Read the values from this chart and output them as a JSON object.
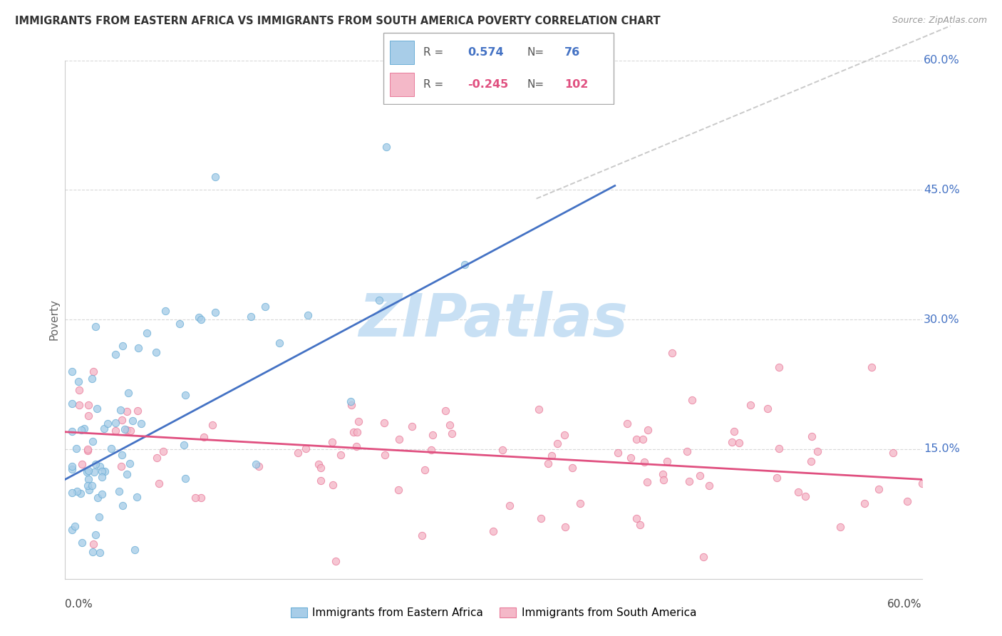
{
  "title": "IMMIGRANTS FROM EASTERN AFRICA VS IMMIGRANTS FROM SOUTH AMERICA POVERTY CORRELATION CHART",
  "source": "Source: ZipAtlas.com",
  "ylabel": "Poverty",
  "label1": "Immigrants from Eastern Africa",
  "label2": "Immigrants from South America",
  "r1": "0.574",
  "n1": "76",
  "r2": "-0.245",
  "n2": "102",
  "color_blue_fill": "#a8cde8",
  "color_blue_edge": "#6baed6",
  "color_blue_line": "#4472c4",
  "color_pink_fill": "#f4b8c8",
  "color_pink_edge": "#e87a9a",
  "color_pink_line": "#e05080",
  "color_blue_text": "#4472c4",
  "color_pink_text": "#e05080",
  "color_grid": "#d8d8d8",
  "color_diag": "#b8b8b8",
  "watermark_color": "#c8e0f4",
  "xlim": [
    0.0,
    0.6
  ],
  "ylim": [
    0.0,
    0.6
  ],
  "right_ytick_vals": [
    0.15,
    0.3,
    0.45,
    0.6
  ],
  "right_ytick_labels": [
    "15.0%",
    "30.0%",
    "45.0%",
    "60.0%"
  ],
  "blue_line_y0": 0.115,
  "blue_line_y1": 0.455,
  "blue_line_x0": 0.0,
  "blue_line_x1": 0.385,
  "pink_line_y0": 0.17,
  "pink_line_y1": 0.115,
  "pink_line_x0": 0.0,
  "pink_line_x1": 0.6
}
